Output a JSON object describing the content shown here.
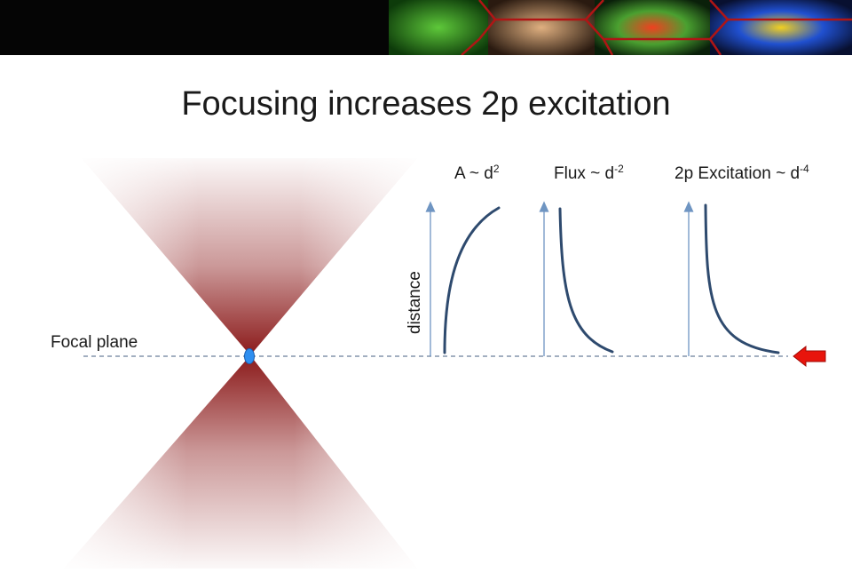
{
  "slide": {
    "title": "Focusing increases 2p excitation",
    "focal_label": "Focal plane",
    "axis_label": "distance"
  },
  "equations": {
    "area": {
      "prefix": "A ~ d",
      "exp": "2"
    },
    "flux": {
      "prefix": "Flux ~ d",
      "exp": "-2"
    },
    "excitation": {
      "prefix": "2p Excitation  ~ d",
      "exp": "-4"
    }
  },
  "colors": {
    "beam": "#8b1a1a",
    "curve": "#2e4a6e",
    "axis": "#6f95c2",
    "focal_line": "#6a7f9a",
    "focus_spot": "#2f8ff0",
    "arrow": "#e8140c"
  },
  "icons": {
    "pointer": "red-left-arrow-icon",
    "spot": "focus-spot-icon"
  }
}
